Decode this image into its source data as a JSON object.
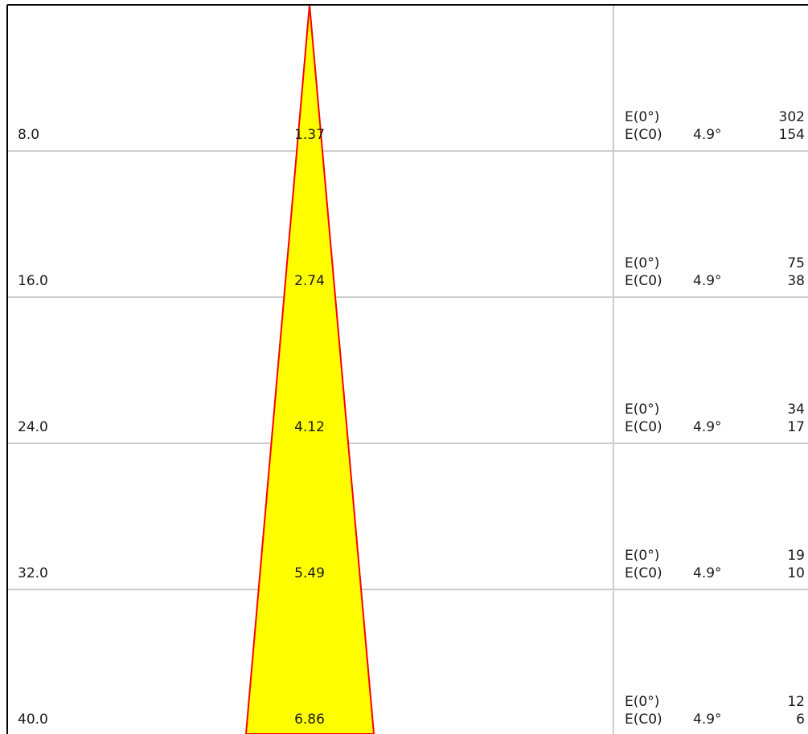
{
  "colors": {
    "beam_fill": "#ffff00",
    "beam_outline": "#ff0000",
    "grid": "#cccccc",
    "frame": "#000000"
  },
  "rows": [
    {
      "distance": "8.0",
      "diameter": "1.37",
      "e_center_label": "E(0°)",
      "e_center_value": "302",
      "e_c0_label": "E(C0)",
      "e_c0_angle": "4.9°",
      "e_c0_value": "154"
    },
    {
      "distance": "16.0",
      "diameter": "2.74",
      "e_center_label": "E(0°)",
      "e_center_value": "75",
      "e_c0_label": "E(C0)",
      "e_c0_angle": "4.9°",
      "e_c0_value": "38"
    },
    {
      "distance": "24.0",
      "diameter": "4.12",
      "e_center_label": "E(0°)",
      "e_center_value": "34",
      "e_c0_label": "E(C0)",
      "e_c0_angle": "4.9°",
      "e_c0_value": "17"
    },
    {
      "distance": "32.0",
      "diameter": "5.49",
      "e_center_label": "E(0°)",
      "e_center_value": "19",
      "e_c0_label": "E(C0)",
      "e_c0_angle": "4.9°",
      "e_c0_value": "10"
    },
    {
      "distance": "40.0",
      "diameter": "6.86",
      "e_center_label": "E(0°)",
      "e_center_value": "12",
      "e_c0_label": "E(C0)",
      "e_c0_angle": "4.9°",
      "e_c0_value": "6"
    }
  ]
}
